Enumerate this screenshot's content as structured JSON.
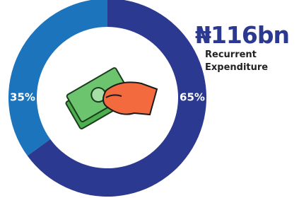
{
  "chart_data": {
    "type": "donut",
    "values": [
      65,
      35
    ],
    "value_labels": [
      "65%",
      "35%"
    ],
    "colors": [
      "#2b3990",
      "#1c75bc"
    ],
    "annotation": {
      "amount": "₦116bn",
      "label": "Recurrent Expenditure"
    }
  }
}
